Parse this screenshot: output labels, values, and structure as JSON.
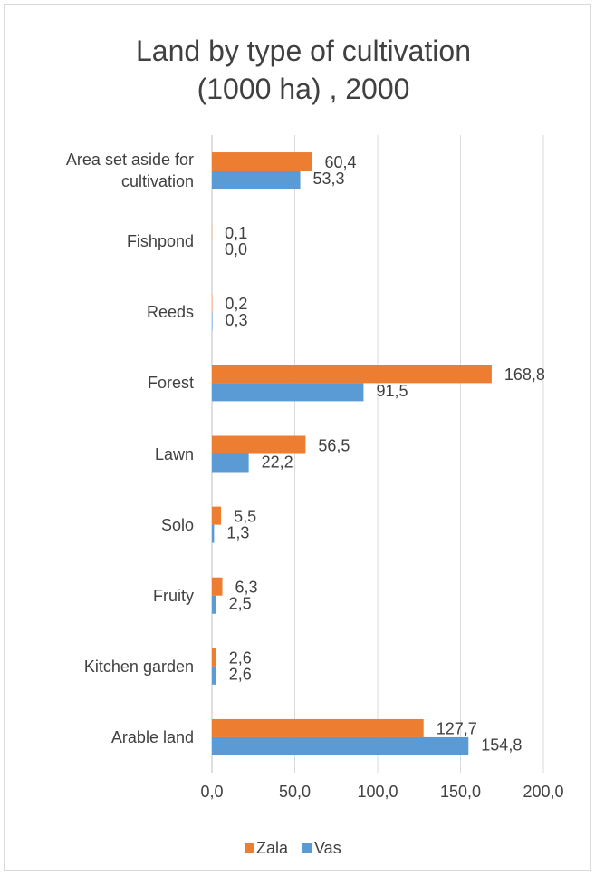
{
  "chart_data": {
    "type": "bar",
    "orientation": "horizontal",
    "title": "Land by type of cultivation (1000 ha) , 2000",
    "categories": [
      "Area set aside for cultivation",
      "Fishpond",
      "Reeds",
      "Forest",
      "Lawn",
      "Solo",
      "Fruity",
      "Kitchen garden",
      "Arable land"
    ],
    "series": [
      {
        "name": "Zala",
        "color": "#ed7d31",
        "values": [
          60.4,
          0.1,
          0.2,
          168.8,
          56.5,
          5.5,
          6.3,
          2.6,
          127.7
        ],
        "value_labels": [
          "60,4",
          "0,1",
          "0,2",
          "168,8",
          "56,5",
          "5,5",
          "6,3",
          "2,6",
          "127,7"
        ]
      },
      {
        "name": "Vas",
        "color": "#5b9bd5",
        "values": [
          53.3,
          0.0,
          0.3,
          91.5,
          22.2,
          1.3,
          2.5,
          2.6,
          154.8
        ],
        "value_labels": [
          "53,3",
          "0,0",
          "0,3",
          "91,5",
          "22,2",
          "1,3",
          "2,5",
          "2,6",
          "154,8"
        ]
      }
    ],
    "xlim": [
      0,
      200
    ],
    "xticks": [
      {
        "value": 0,
        "label": "0,0"
      },
      {
        "value": 50,
        "label": "50,0"
      },
      {
        "value": 100,
        "label": "100,0"
      },
      {
        "value": 150,
        "label": "150,0"
      },
      {
        "value": 200,
        "label": "200,0"
      }
    ],
    "grid": true,
    "legend": "bottom"
  }
}
